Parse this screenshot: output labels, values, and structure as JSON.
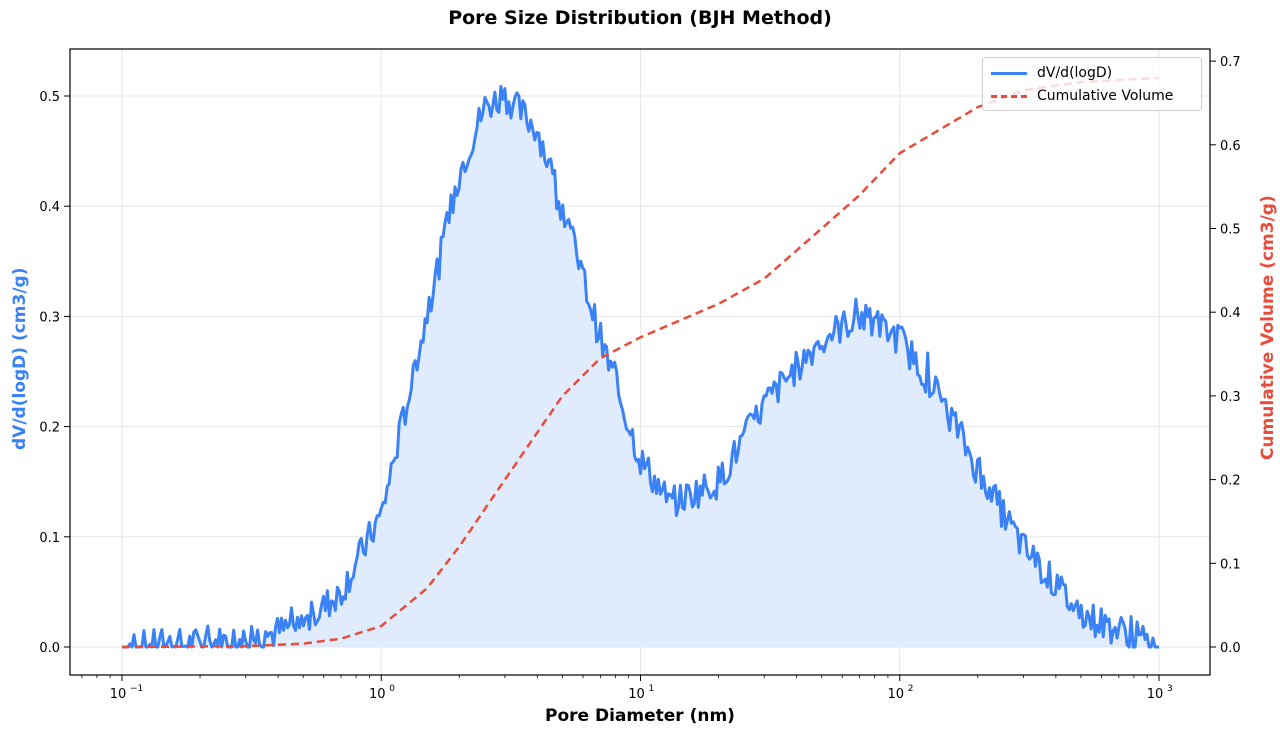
{
  "title": "Pore Size Distribution (BJH Method)",
  "xlabel": "Pore Diameter (nm)",
  "ylabel_left": "dV/d(logD) (cm3/g)",
  "ylabel_right": "Cumulative Volume (cm3/g)",
  "legend": {
    "items": [
      {
        "label": "dV/d(logD)",
        "color": "#3b82f6",
        "style": "solid"
      },
      {
        "label": "Cumulative Volume",
        "color": "#e74c3c",
        "style": "dashed"
      }
    ]
  },
  "colors": {
    "primary": "#3b82f6",
    "fill": "#dbe8fc",
    "secondary": "#e74c3c",
    "grid": "#e6e6e6"
  },
  "chart_data": {
    "type": "line",
    "title": "Pore Size Distribution (BJH Method)",
    "xlabel": "Pore Diameter (nm)",
    "ylabel": "dV/d(logD) (cm3/g)",
    "ylabel_right": "Cumulative Volume (cm3/g)",
    "xscale": "log",
    "xlim": [
      0.1,
      1000
    ],
    "ylim": [
      -0.02,
      0.54
    ],
    "ylim_right": [
      -0.03,
      0.71
    ],
    "x_ticks": [
      "10^-1",
      "10^0",
      "10^1",
      "10^2",
      "10^3"
    ],
    "y_ticks": [
      0.0,
      0.1,
      0.2,
      0.3,
      0.4,
      0.5
    ],
    "y_ticks_right": [
      0.0,
      0.1,
      0.2,
      0.3,
      0.4,
      0.5,
      0.6,
      0.7
    ],
    "grid": true,
    "legend_position": "upper right",
    "series": [
      {
        "name": "dV/d(logD)",
        "axis": "left",
        "style": "solid",
        "fill": true,
        "x": [
          0.1,
          0.2,
          0.3,
          0.5,
          0.7,
          1.0,
          1.5,
          2.0,
          2.5,
          3.0,
          4.0,
          5.0,
          7.0,
          10,
          13,
          20,
          30,
          50,
          70,
          100,
          150,
          200,
          300,
          500,
          700,
          1000
        ],
        "y": [
          0.0,
          0.003,
          0.006,
          0.02,
          0.05,
          0.12,
          0.3,
          0.43,
          0.49,
          0.5,
          0.47,
          0.4,
          0.28,
          0.17,
          0.13,
          0.15,
          0.22,
          0.28,
          0.3,
          0.28,
          0.22,
          0.16,
          0.09,
          0.03,
          0.015,
          0.0
        ]
      },
      {
        "name": "Cumulative Volume",
        "axis": "right",
        "style": "dashed",
        "x": [
          0.1,
          0.3,
          0.5,
          0.7,
          1.0,
          1.5,
          2.0,
          3.0,
          5.0,
          7.0,
          10,
          20,
          30,
          50,
          70,
          100,
          200,
          300,
          500,
          1000
        ],
        "y": [
          0.0,
          0.001,
          0.004,
          0.01,
          0.025,
          0.07,
          0.12,
          0.2,
          0.3,
          0.345,
          0.37,
          0.41,
          0.44,
          0.5,
          0.54,
          0.59,
          0.645,
          0.665,
          0.675,
          0.68
        ]
      }
    ]
  }
}
